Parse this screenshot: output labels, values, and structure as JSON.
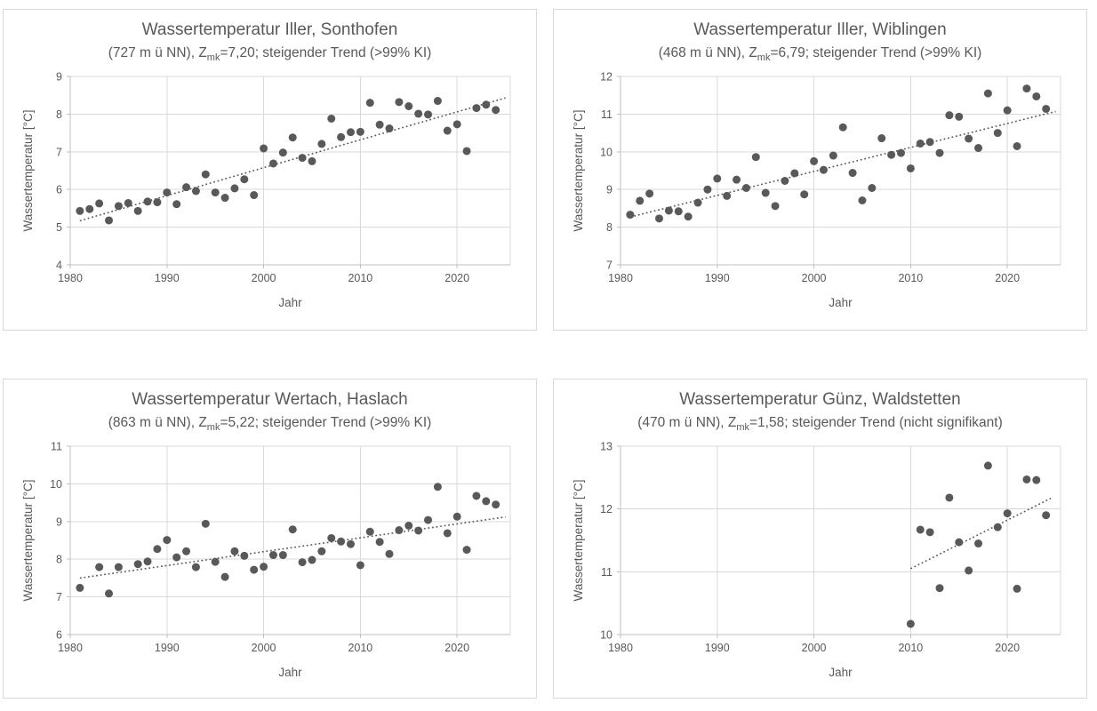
{
  "page": {
    "background": "#ffffff"
  },
  "styles": {
    "text_color": "#595959",
    "grid_color": "#d9d9d9",
    "axis_color": "#bfbfbf",
    "point_color": "#595959",
    "trend_color": "#595959",
    "panel_border": "#d9d9d9"
  },
  "chart_data": [
    {
      "type": "scatter",
      "title": "Wassertemperatur Iller, Sonthofen",
      "subtitle_pre": "(727 m ü NN), Z",
      "subtitle_sub": "mk",
      "subtitle_post": "=7,20; steigender Trend (>99% KI)",
      "xlabel": "Jahr",
      "ylabel": "Wassertemperatur [°C]",
      "xlim": [
        1980,
        2025.5
      ],
      "ylim": [
        4,
        9
      ],
      "xticks": [
        1980,
        1990,
        2000,
        2010,
        2020
      ],
      "yticks": [
        4,
        5,
        6,
        7,
        8,
        9
      ],
      "grid": true,
      "legend": "none",
      "trend": {
        "style": "dotted",
        "x1": 1981,
        "y1": 5.17,
        "x2": 2025,
        "y2": 8.43
      },
      "points": [
        [
          1981,
          5.43
        ],
        [
          1982,
          5.48
        ],
        [
          1983,
          5.63
        ],
        [
          1984,
          5.18
        ],
        [
          1985,
          5.56
        ],
        [
          1986,
          5.64
        ],
        [
          1987,
          5.43
        ],
        [
          1988,
          5.68
        ],
        [
          1989,
          5.66
        ],
        [
          1990,
          5.92
        ],
        [
          1991,
          5.61
        ],
        [
          1992,
          6.06
        ],
        [
          1993,
          5.96
        ],
        [
          1994,
          6.4
        ],
        [
          1995,
          5.92
        ],
        [
          1996,
          5.78
        ],
        [
          1997,
          6.03
        ],
        [
          1998,
          6.27
        ],
        [
          1999,
          5.85
        ],
        [
          2000,
          7.09
        ],
        [
          2001,
          6.69
        ],
        [
          2002,
          6.98
        ],
        [
          2003,
          7.38
        ],
        [
          2004,
          6.84
        ],
        [
          2005,
          6.75
        ],
        [
          2006,
          7.21
        ],
        [
          2007,
          7.88
        ],
        [
          2008,
          7.39
        ],
        [
          2009,
          7.52
        ],
        [
          2010,
          7.53
        ],
        [
          2011,
          8.3
        ],
        [
          2012,
          7.72
        ],
        [
          2013,
          7.62
        ],
        [
          2014,
          8.32
        ],
        [
          2015,
          8.21
        ],
        [
          2016,
          8.01
        ],
        [
          2017,
          7.99
        ],
        [
          2018,
          8.35
        ],
        [
          2019,
          7.56
        ],
        [
          2020,
          7.73
        ],
        [
          2021,
          7.02
        ],
        [
          2022,
          8.16
        ],
        [
          2023,
          8.25
        ],
        [
          2024,
          8.11
        ]
      ]
    },
    {
      "type": "scatter",
      "title": "Wassertemperatur Iller, Wiblingen",
      "subtitle_pre": "(468 m ü NN), Z",
      "subtitle_sub": "mk",
      "subtitle_post": "=6,79; steigender Trend (>99% KI)",
      "xlabel": "Jahr",
      "ylabel": "Wassertemperatur [°C]",
      "xlim": [
        1980,
        2025.5
      ],
      "ylim": [
        7,
        12
      ],
      "xticks": [
        1980,
        1990,
        2000,
        2010,
        2020
      ],
      "yticks": [
        7,
        8,
        9,
        10,
        11,
        12
      ],
      "grid": true,
      "legend": "none",
      "trend": {
        "style": "dotted",
        "x1": 1981,
        "y1": 8.27,
        "x2": 2025,
        "y2": 11.07
      },
      "points": [
        [
          1981,
          8.33
        ],
        [
          1982,
          8.7
        ],
        [
          1983,
          8.89
        ],
        [
          1984,
          8.23
        ],
        [
          1985,
          8.44
        ],
        [
          1986,
          8.42
        ],
        [
          1987,
          8.28
        ],
        [
          1988,
          8.65
        ],
        [
          1989,
          9.0
        ],
        [
          1990,
          9.29
        ],
        [
          1991,
          8.83
        ],
        [
          1992,
          9.26
        ],
        [
          1993,
          9.04
        ],
        [
          1994,
          9.86
        ],
        [
          1995,
          8.91
        ],
        [
          1996,
          8.56
        ],
        [
          1997,
          9.23
        ],
        [
          1998,
          9.43
        ],
        [
          1999,
          8.87
        ],
        [
          2000,
          9.75
        ],
        [
          2001,
          9.52
        ],
        [
          2002,
          9.9
        ],
        [
          2003,
          10.65
        ],
        [
          2004,
          9.44
        ],
        [
          2005,
          8.71
        ],
        [
          2006,
          9.04
        ],
        [
          2007,
          10.36
        ],
        [
          2008,
          9.92
        ],
        [
          2009,
          9.97
        ],
        [
          2010,
          9.56
        ],
        [
          2011,
          10.22
        ],
        [
          2012,
          10.26
        ],
        [
          2013,
          9.97
        ],
        [
          2014,
          10.97
        ],
        [
          2015,
          10.93
        ],
        [
          2016,
          10.35
        ],
        [
          2017,
          10.1
        ],
        [
          2018,
          11.55
        ],
        [
          2019,
          10.5
        ],
        [
          2020,
          11.1
        ],
        [
          2021,
          10.15
        ],
        [
          2022,
          11.68
        ],
        [
          2023,
          11.47
        ],
        [
          2024,
          11.14
        ]
      ]
    },
    {
      "type": "scatter",
      "title": "Wassertemperatur Wertach, Haslach",
      "subtitle_pre": "(863 m ü NN), Z",
      "subtitle_sub": "mk",
      "subtitle_post": "=5,22; steigender Trend (>99% KI)",
      "xlabel": "Jahr",
      "ylabel": "Wassertemperatur [°C]",
      "xlim": [
        1980,
        2025.5
      ],
      "ylim": [
        6,
        11
      ],
      "xticks": [
        1980,
        1990,
        2000,
        2010,
        2020
      ],
      "yticks": [
        6,
        7,
        8,
        9,
        10,
        11
      ],
      "grid": true,
      "legend": "none",
      "trend": {
        "style": "dotted",
        "x1": 1981,
        "y1": 7.5,
        "x2": 2025,
        "y2": 9.12
      },
      "points": [
        [
          1981,
          7.24
        ],
        [
          1983,
          7.79
        ],
        [
          1984,
          7.09
        ],
        [
          1985,
          7.79
        ],
        [
          1987,
          7.87
        ],
        [
          1988,
          7.94
        ],
        [
          1989,
          8.27
        ],
        [
          1990,
          8.51
        ],
        [
          1991,
          8.05
        ],
        [
          1992,
          8.21
        ],
        [
          1993,
          7.79
        ],
        [
          1994,
          8.94
        ],
        [
          1995,
          7.93
        ],
        [
          1996,
          7.53
        ],
        [
          1997,
          8.21
        ],
        [
          1998,
          8.09
        ],
        [
          1999,
          7.72
        ],
        [
          2000,
          7.8
        ],
        [
          2001,
          8.11
        ],
        [
          2002,
          8.11
        ],
        [
          2003,
          8.79
        ],
        [
          2004,
          7.92
        ],
        [
          2005,
          7.98
        ],
        [
          2006,
          8.21
        ],
        [
          2007,
          8.56
        ],
        [
          2008,
          8.47
        ],
        [
          2009,
          8.4
        ],
        [
          2010,
          7.84
        ],
        [
          2011,
          8.73
        ],
        [
          2012,
          8.46
        ],
        [
          2013,
          8.14
        ],
        [
          2014,
          8.77
        ],
        [
          2015,
          8.89
        ],
        [
          2016,
          8.76
        ],
        [
          2017,
          9.04
        ],
        [
          2018,
          9.92
        ],
        [
          2019,
          8.69
        ],
        [
          2020,
          9.13
        ],
        [
          2021,
          8.25
        ],
        [
          2022,
          9.68
        ],
        [
          2023,
          9.54
        ],
        [
          2024,
          9.45
        ]
      ]
    },
    {
      "type": "scatter",
      "title": "Wassertemperatur Günz, Waldstetten",
      "subtitle_pre": "(470 m ü NN), Z",
      "subtitle_sub": "mk",
      "subtitle_post": "=1,58; steigender Trend (nicht signifikant)",
      "xlabel": "Jahr",
      "ylabel": "Wassertemperatur [°C]",
      "xlim": [
        1980,
        2025.5
      ],
      "ylim": [
        10,
        13
      ],
      "xticks": [
        1980,
        1990,
        2000,
        2010,
        2020
      ],
      "yticks": [
        10,
        11,
        12,
        13
      ],
      "grid": true,
      "legend": "none",
      "trend": {
        "style": "dotted",
        "x1": 2010,
        "y1": 11.05,
        "x2": 2024.5,
        "y2": 12.17
      },
      "points": [
        [
          2010,
          10.17
        ],
        [
          2011,
          11.67
        ],
        [
          2012,
          11.63
        ],
        [
          2013,
          10.74
        ],
        [
          2014,
          12.18
        ],
        [
          2015,
          11.47
        ],
        [
          2016,
          11.02
        ],
        [
          2017,
          11.45
        ],
        [
          2018,
          12.69
        ],
        [
          2019,
          11.71
        ],
        [
          2020,
          11.93
        ],
        [
          2021,
          10.73
        ],
        [
          2022,
          12.47
        ],
        [
          2023,
          12.46
        ],
        [
          2024,
          11.9
        ]
      ]
    }
  ]
}
